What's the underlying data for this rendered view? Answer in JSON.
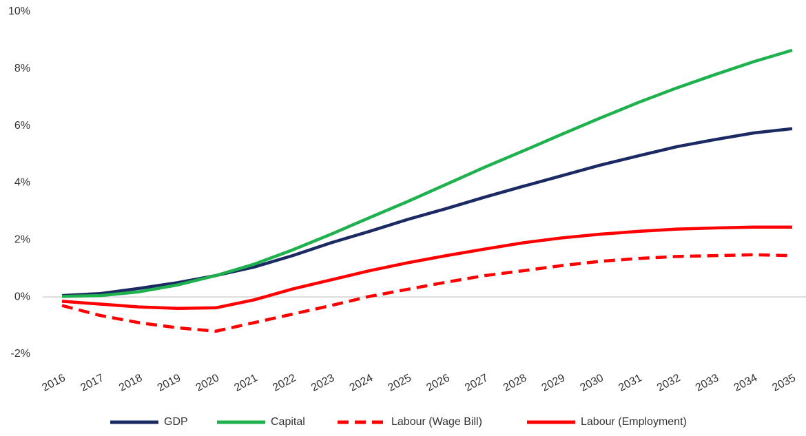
{
  "chart_data": {
    "type": "line",
    "categories": [
      "2016",
      "2017",
      "2018",
      "2019",
      "2020",
      "2021",
      "2022",
      "2023",
      "2024",
      "2025",
      "2026",
      "2027",
      "2028",
      "2029",
      "2030",
      "2031",
      "2032",
      "2033",
      "2034",
      "2035"
    ],
    "series": [
      {
        "name": "GDP",
        "color": "#1b2a63",
        "dashed": false,
        "values": [
          0.05,
          0.12,
          0.3,
          0.5,
          0.75,
          1.05,
          1.45,
          1.9,
          2.3,
          2.72,
          3.1,
          3.5,
          3.88,
          4.25,
          4.62,
          4.95,
          5.27,
          5.52,
          5.75,
          5.9
        ]
      },
      {
        "name": "Capital",
        "color": "#1fb14e",
        "dashed": false,
        "values": [
          0.02,
          0.05,
          0.18,
          0.42,
          0.75,
          1.15,
          1.65,
          2.2,
          2.78,
          3.35,
          3.95,
          4.55,
          5.12,
          5.7,
          6.27,
          6.82,
          7.33,
          7.8,
          8.25,
          8.65
        ]
      },
      {
        "name": "Labour (Wage Bill)",
        "color": "#ff0000",
        "dashed": true,
        "values": [
          -0.3,
          -0.65,
          -0.9,
          -1.08,
          -1.2,
          -0.9,
          -0.6,
          -0.3,
          0.02,
          0.27,
          0.52,
          0.75,
          0.92,
          1.1,
          1.25,
          1.35,
          1.42,
          1.45,
          1.48,
          1.45
        ]
      },
      {
        "name": "Labour (Employment)",
        "color": "#ff0000",
        "dashed": false,
        "values": [
          -0.15,
          -0.25,
          -0.35,
          -0.4,
          -0.38,
          -0.1,
          0.28,
          0.6,
          0.92,
          1.2,
          1.45,
          1.68,
          1.9,
          2.07,
          2.2,
          2.3,
          2.38,
          2.42,
          2.45,
          2.45
        ]
      }
    ],
    "ylim": [
      -2,
      10
    ],
    "yticks": [
      {
        "value": -2,
        "label": "-2%"
      },
      {
        "value": 0,
        "label": "0%"
      },
      {
        "value": 2,
        "label": "2%"
      },
      {
        "value": 4,
        "label": "4%"
      },
      {
        "value": 6,
        "label": "6%"
      },
      {
        "value": 8,
        "label": "8%"
      },
      {
        "value": 10,
        "label": "10%"
      }
    ],
    "grid": false,
    "legend": "bottom"
  }
}
